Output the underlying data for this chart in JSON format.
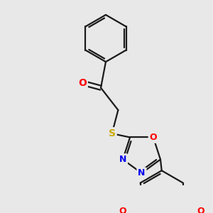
{
  "background_color": "#e8e8e8",
  "bond_color": "#1a1a1a",
  "bond_width": 1.6,
  "atom_colors": {
    "O": "#ff0000",
    "N": "#0000ee",
    "S": "#ccaa00",
    "C": "#1a1a1a"
  },
  "font_size": 9,
  "figsize": [
    3.0,
    3.0
  ],
  "dpi": 100
}
